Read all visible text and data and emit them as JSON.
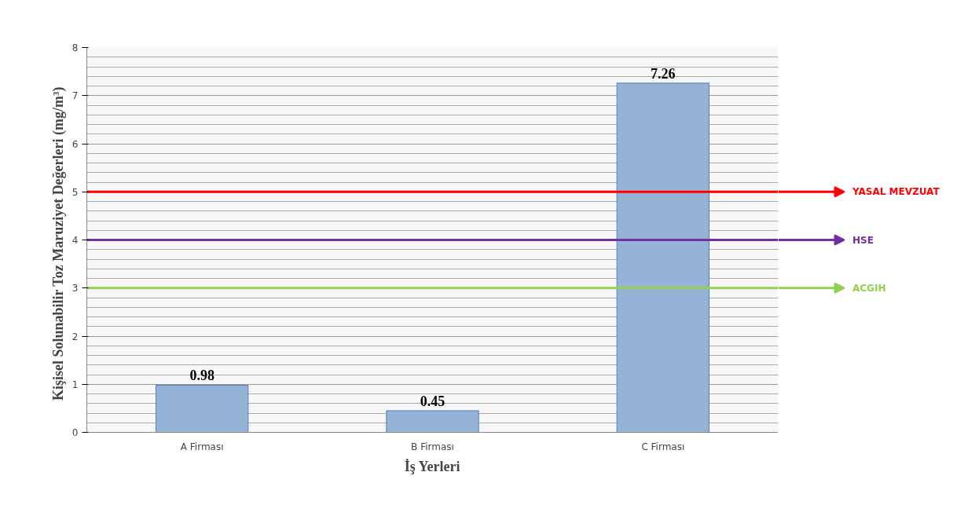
{
  "chart_data": {
    "type": "bar",
    "xlabel": "İş Yerleri",
    "ylabel": "Kişisel Solunabilir  Toz  Maruziyet Değerleri (mg/m³)",
    "categories": [
      "A Firması",
      "B Firması",
      "C Firması"
    ],
    "values": [
      0.98,
      0.45,
      7.26
    ],
    "color": "#95b3d7",
    "data_labels": true,
    "ylim": [
      0,
      8
    ],
    "yticks": [
      0,
      1,
      2,
      3,
      4,
      5,
      6,
      7,
      8
    ],
    "grid": "y",
    "ref_lines": [
      {
        "axis": "y",
        "value": 5,
        "label": "YASAL MEVZUAT",
        "color": "#ff0000"
      },
      {
        "axis": "y",
        "value": 4,
        "label": "HSE",
        "color": "#7030a0"
      },
      {
        "axis": "y",
        "value": 3,
        "label": "ACGIH",
        "color": "#92d050"
      }
    ]
  }
}
